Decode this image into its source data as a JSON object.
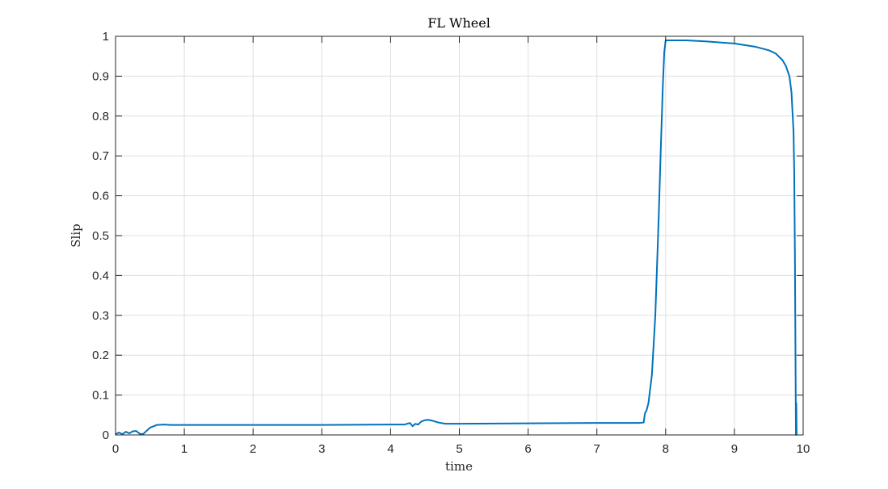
{
  "chart_data": {
    "type": "line",
    "title": "FL Wheel",
    "xlabel": "time",
    "ylabel": "Slip",
    "xlim": [
      0,
      10
    ],
    "ylim": [
      0,
      1
    ],
    "grid": true,
    "x_ticks": [
      "0",
      "1",
      "2",
      "3",
      "4",
      "5",
      "6",
      "7",
      "8",
      "9",
      "10"
    ],
    "y_ticks": [
      "0",
      "0.1",
      "0.2",
      "0.3",
      "0.4",
      "0.5",
      "0.6",
      "0.7",
      "0.8",
      "0.9",
      "1"
    ],
    "colors": {
      "line": "#0072BD",
      "grid": "#dfdfdf",
      "axis": "#262626"
    },
    "series": [
      {
        "x": [
          0,
          0.05,
          0.1,
          0.15,
          0.2,
          0.25,
          0.3,
          0.35,
          0.4,
          0.45,
          0.5,
          0.6,
          0.7,
          0.8,
          1.0,
          2.0,
          3.0,
          4.0,
          4.2,
          4.28,
          4.32,
          4.36,
          4.4,
          4.45,
          4.5,
          4.55,
          4.6,
          4.7,
          4.8,
          5.0,
          6.0,
          7.0,
          7.6,
          7.68,
          7.7,
          7.72,
          7.75,
          7.8,
          7.85,
          7.9,
          7.93,
          7.96,
          7.98,
          8.0,
          8.05,
          8.3,
          8.6,
          9.0,
          9.3,
          9.5,
          9.6,
          9.7,
          9.75,
          9.8,
          9.83,
          9.86,
          9.87,
          9.88,
          9.89,
          9.895,
          9.9,
          9.905
        ],
        "values": [
          0.002,
          0.006,
          0.002,
          0.008,
          0.004,
          0.009,
          0.01,
          0.003,
          0.002,
          0.01,
          0.018,
          0.025,
          0.026,
          0.025,
          0.025,
          0.025,
          0.025,
          0.026,
          0.026,
          0.03,
          0.022,
          0.028,
          0.026,
          0.034,
          0.037,
          0.038,
          0.036,
          0.031,
          0.028,
          0.028,
          0.029,
          0.03,
          0.03,
          0.031,
          0.055,
          0.06,
          0.08,
          0.15,
          0.3,
          0.55,
          0.72,
          0.88,
          0.96,
          0.99,
          0.99,
          0.99,
          0.987,
          0.982,
          0.974,
          0.965,
          0.957,
          0.94,
          0.925,
          0.9,
          0.86,
          0.76,
          0.66,
          0.45,
          0.15,
          0.0,
          0.08,
          0.0
        ]
      }
    ]
  }
}
